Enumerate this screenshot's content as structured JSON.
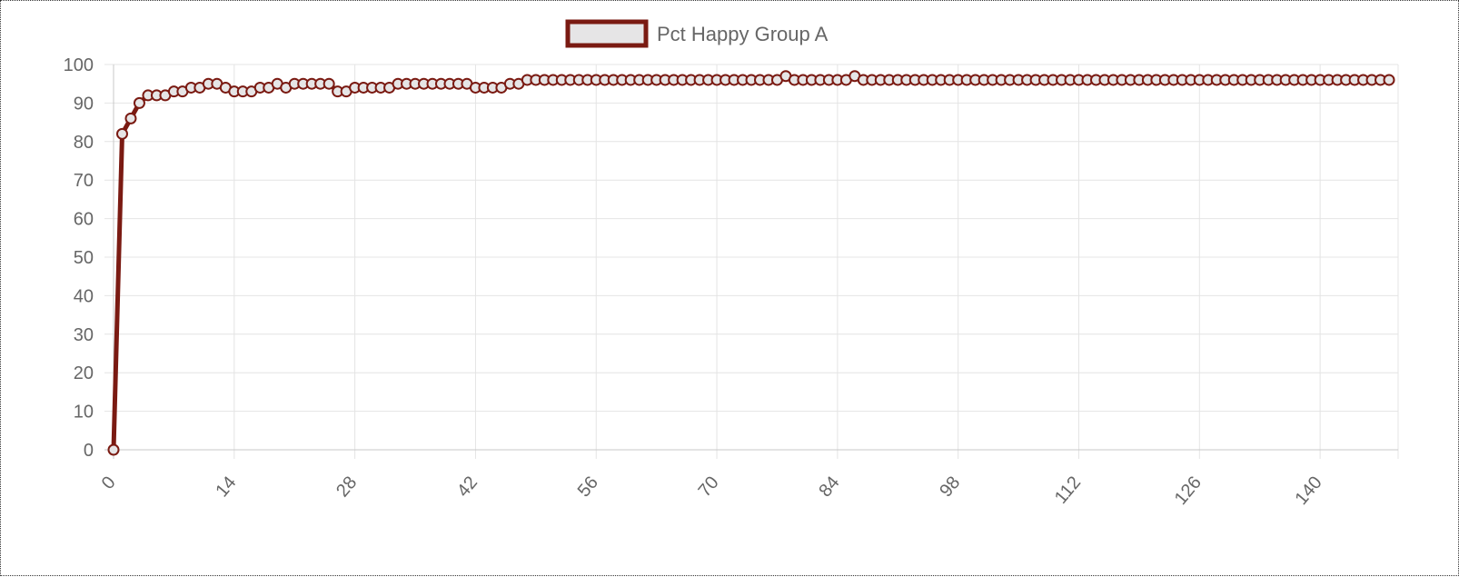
{
  "chart_data": {
    "type": "line",
    "series": [
      {
        "name": "Pct Happy Group A",
        "color": "#7a1a12",
        "fill": "#e6e5e6",
        "x_start": 0,
        "values": [
          0,
          82,
          86,
          90,
          92,
          92,
          92,
          93,
          93,
          94,
          94,
          95,
          95,
          94,
          93,
          93,
          93,
          94,
          94,
          95,
          94,
          95,
          95,
          95,
          95,
          95,
          93,
          93,
          94,
          94,
          94,
          94,
          94,
          95,
          95,
          95,
          95,
          95,
          95,
          95,
          95,
          95,
          94,
          94,
          94,
          94,
          95,
          95,
          96,
          96,
          96,
          96,
          96,
          96,
          96,
          96,
          96,
          96,
          96,
          96,
          96,
          96,
          96,
          96,
          96,
          96,
          96,
          96,
          96,
          96,
          96,
          96,
          96,
          96,
          96,
          96,
          96,
          96,
          97,
          96,
          96,
          96,
          96,
          96,
          96,
          96,
          97,
          96,
          96,
          96,
          96,
          96,
          96,
          96,
          96,
          96,
          96,
          96,
          96,
          96,
          96,
          96,
          96,
          96,
          96,
          96,
          96,
          96,
          96,
          96,
          96,
          96,
          96,
          96,
          96,
          96,
          96,
          96,
          96,
          96,
          96,
          96,
          96,
          96,
          96,
          96,
          96,
          96,
          96,
          96,
          96,
          96,
          96,
          96,
          96,
          96,
          96,
          96,
          96,
          96,
          96,
          96,
          96,
          96,
          96,
          96,
          96,
          96,
          96
        ]
      }
    ],
    "x_ticks": [
      0,
      14,
      28,
      42,
      56,
      70,
      84,
      98,
      112,
      126,
      140
    ],
    "y_ticks": [
      0,
      10,
      20,
      30,
      40,
      50,
      60,
      70,
      80,
      90,
      100
    ],
    "xlim": [
      0,
      148
    ],
    "ylim": [
      0,
      100
    ],
    "grid": true,
    "legend_position": "top-center"
  }
}
